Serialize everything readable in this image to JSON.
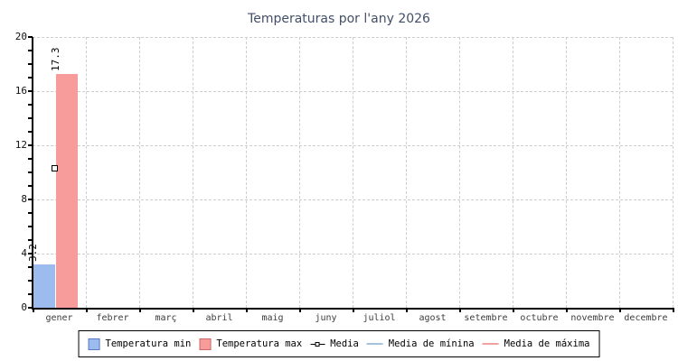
{
  "chart_data": {
    "type": "bar",
    "title": "Temperaturas por l'any 2026",
    "categories": [
      "gener",
      "febrer",
      "març",
      "abril",
      "maig",
      "juny",
      "juliol",
      "agost",
      "setembre",
      "octubre",
      "novembre",
      "decembre"
    ],
    "series": [
      {
        "name": "Temperatura min",
        "type": "bar",
        "color": "#9CBCEF",
        "border_color": "#5A7AC6",
        "values": [
          3.2,
          null,
          null,
          null,
          null,
          null,
          null,
          null,
          null,
          null,
          null,
          null
        ]
      },
      {
        "name": "Temperatura max",
        "type": "bar",
        "color": "#F89B9B",
        "border_color": "#C96A6A",
        "values": [
          17.3,
          null,
          null,
          null,
          null,
          null,
          null,
          null,
          null,
          null,
          null,
          null
        ]
      },
      {
        "name": "Media",
        "type": "point",
        "marker": "square",
        "color": "#000000",
        "values": [
          10.3,
          null,
          null,
          null,
          null,
          null,
          null,
          null,
          null,
          null,
          null,
          null
        ]
      },
      {
        "name": "Media de mínina",
        "type": "line",
        "color": "#A5C2DF",
        "values": []
      },
      {
        "name": "Media de máxima",
        "type": "line",
        "color": "#F2A0A0",
        "values": []
      }
    ],
    "ylim": [
      0,
      20
    ],
    "yticks": [
      0,
      4,
      8,
      12,
      16,
      20
    ],
    "minor_tick_step": 1,
    "grid": true,
    "legend_position": "bottom",
    "bar_value_label_format": "one-decimal",
    "colors": {
      "gridline": "#cecece",
      "axis": "#000000",
      "title": "#424F68"
    }
  }
}
